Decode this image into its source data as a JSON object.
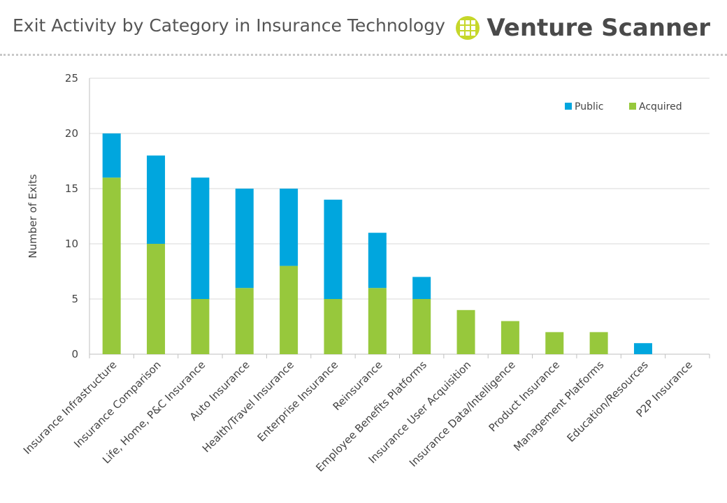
{
  "header": {
    "title": "Exit Activity by Category in Insurance Technology",
    "brand_name": "Venture Scanner"
  },
  "colors": {
    "public": "#00a6de",
    "acquired": "#97c83c",
    "grid": "#d9d9d9",
    "axis": "#bfbfbf",
    "text": "#444444",
    "logo": "#c6d72a"
  },
  "chart_data": {
    "type": "bar",
    "stacked": true,
    "title": "",
    "xlabel": "",
    "ylabel": "Number of Exits",
    "ylim": [
      0,
      25
    ],
    "yticks": [
      0,
      5,
      10,
      15,
      20,
      25
    ],
    "grid": true,
    "legend_position": "top-right",
    "categories": [
      "Insurance Infrastructure",
      "Insurance Comparison",
      "Life, Home, P&C Insurance",
      "Auto Insurance",
      "Health/Travel Insurance",
      "Enterprise Insurance",
      "Reinsurance",
      "Employee Benefits Platforms",
      "Insurance User Acquisition",
      "Insurance Data/Intelligence",
      "Product Insurance",
      "Management Platforms",
      "Education/Resources",
      "P2P Insurance"
    ],
    "series": [
      {
        "name": "Acquired",
        "values": [
          16,
          10,
          5,
          6,
          8,
          5,
          6,
          5,
          4,
          3,
          2,
          2,
          0,
          0
        ]
      },
      {
        "name": "Public",
        "values": [
          4,
          8,
          11,
          9,
          7,
          9,
          5,
          2,
          0,
          0,
          0,
          0,
          1,
          0
        ]
      }
    ]
  }
}
